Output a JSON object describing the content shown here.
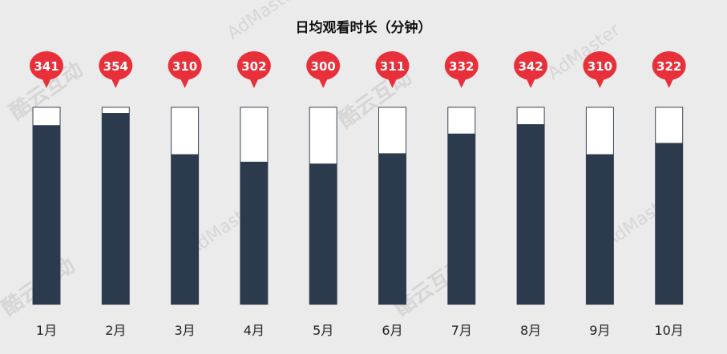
{
  "chart_data": {
    "type": "bar",
    "title": "日均观看时长（分钟）",
    "categories": [
      "1月",
      "2月",
      "3月",
      "4月",
      "5月",
      "6月",
      "7月",
      "8月",
      "9月",
      "10月"
    ],
    "values": [
      341,
      354,
      310,
      302,
      300,
      311,
      332,
      342,
      310,
      322
    ],
    "ylim": [
      150,
      360
    ],
    "xlabel": "",
    "ylabel": "",
    "grid": false,
    "legend": "none",
    "colors": {
      "bar_fill": "#2b3a4d",
      "bar_track": "#ffffff",
      "bubble": "#e8303a",
      "bubble_text": "#ffffff",
      "background": "#ebebeb"
    }
  },
  "watermark": {
    "brand_cn": "酷云互动",
    "brand_en": "AdMaster"
  }
}
